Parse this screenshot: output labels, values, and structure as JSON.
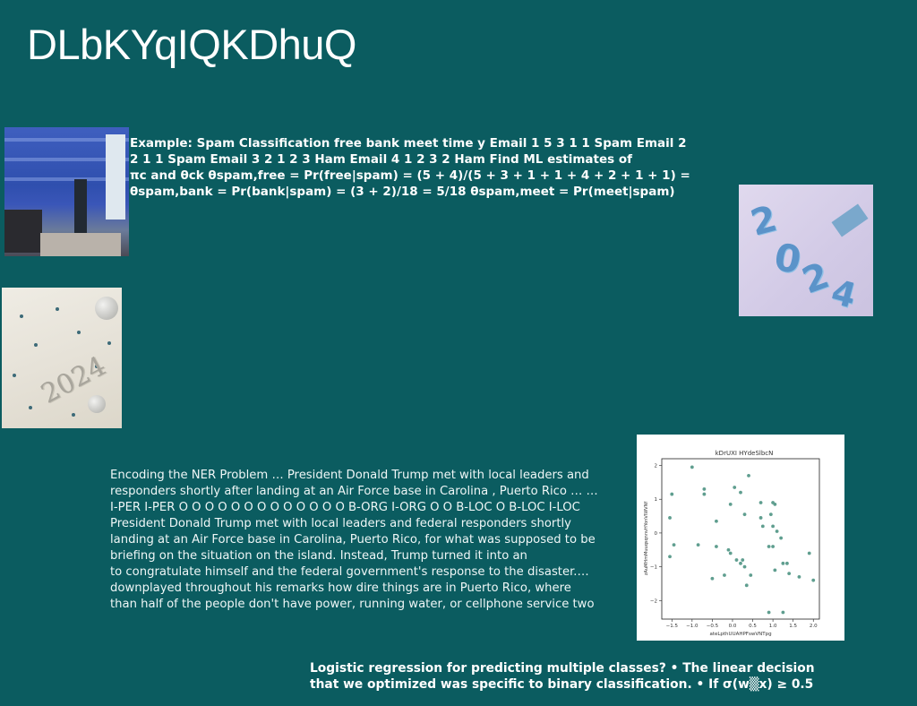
{
  "slide": {
    "title": "DLbKYqIQKDhuQ",
    "text_spam": [
      "Example: Spam Classification free bank meet time y Email 1 5 3 1 1 Spam Email 2",
      "2 1 1 Spam Email 3 2 1 2 3 Ham Email 4 1 2 3 2 Ham Find ML estimates of",
      "πc and θck θspam,free = Pr(free|spam) = (5 + 4)/(5 + 3 + 1 + 1 + 4 + 2 + 1 + 1) =",
      "θspam,bank = Pr(bank|spam) = (3 + 2)/18 = 5/18 θspam,meet = Pr(meet|spam)"
    ],
    "text_ner": [
      "Encoding the NER Problem … President Donald Trump met with local leaders and",
      "responders shortly after landing at an Air Force base in Carolina , Puerto Rico … …",
      "I-PER I-PER O O O O O O O O O O O O O B-ORG I-ORG O O B-LOC O B-LOC I-LOC",
      "President Donald Trump met with local leaders and federal responders shortly",
      "landing at an Air Force base in Carolina, Puerto Rico, for what was supposed to be",
      "briefing on the situation on the island. Instead, Trump turned it into an",
      "to congratulate himself and the federal government's response to the disaster.…",
      "downplayed throughout his remarks how dire things are in Puerto Rico, where",
      "than half of the people don't have power, running water, or cellphone service two"
    ],
    "text_logistic": [
      "Logistic regression for predicting multiple classes? • The linear decision",
      "that we optimized was specific to binary classification. • If σ(w▒x) ≥ 0.5"
    ]
  },
  "images": {
    "cabin_icon": "blue-cabin-interior-photo",
    "balloons_icon": "2024-balloons-photo",
    "silver_icon": "2024-silver-numbers-photo",
    "balloon_digits": [
      "2",
      "0",
      "2",
      "4"
    ],
    "silver_digits": "2024"
  },
  "chart_data": {
    "type": "scatter",
    "title": "kDrUXI HYdeSlbcN",
    "xlabel": "ateLpthUUAHPFswVNTpg",
    "ylabel": "zAuMHmMuuqsqnnvHYonVIWVNf",
    "xlim": [
      -1.75,
      2.15
    ],
    "ylim": [
      -2.55,
      2.2
    ],
    "xticks": [
      -1.5,
      -1.0,
      -0.5,
      0.0,
      0.5,
      1.0,
      1.5,
      2.0
    ],
    "xtick_labels": [
      "−1.5",
      "−1.0",
      "−0.5",
      "0.0",
      "0.5",
      "1.0",
      "1.5",
      "2.0"
    ],
    "yticks": [
      -2,
      -1,
      0,
      1,
      2
    ],
    "ytick_labels": [
      "−2",
      "−1",
      "0",
      "1",
      "2"
    ],
    "grid": false,
    "point_color": "#5f9e8f",
    "points": [
      [
        -1.0,
        1.95
      ],
      [
        -1.55,
        0.45
      ],
      [
        -1.5,
        1.15
      ],
      [
        -1.45,
        -0.35
      ],
      [
        -1.55,
        -0.7
      ],
      [
        -0.7,
        1.3
      ],
      [
        -0.7,
        1.15
      ],
      [
        -0.85,
        -0.35
      ],
      [
        -0.4,
        0.35
      ],
      [
        -0.4,
        -0.4
      ],
      [
        -0.5,
        -1.35
      ],
      [
        -0.2,
        -1.25
      ],
      [
        -0.1,
        -0.5
      ],
      [
        -0.05,
        -0.6
      ],
      [
        0.05,
        1.35
      ],
      [
        0.2,
        1.2
      ],
      [
        0.3,
        0.55
      ],
      [
        0.4,
        1.7
      ],
      [
        0.1,
        -0.8
      ],
      [
        0.2,
        -0.9
      ],
      [
        0.25,
        -0.8
      ],
      [
        0.3,
        -1.0
      ],
      [
        0.45,
        -1.25
      ],
      [
        0.35,
        -1.55
      ],
      [
        -0.05,
        0.85
      ],
      [
        0.7,
        0.9
      ],
      [
        0.75,
        0.2
      ],
      [
        0.7,
        0.45
      ],
      [
        0.9,
        -0.4
      ],
      [
        0.95,
        0.55
      ],
      [
        1.0,
        0.9
      ],
      [
        1.05,
        0.85
      ],
      [
        1.0,
        0.2
      ],
      [
        1.1,
        0.05
      ],
      [
        1.2,
        -0.15
      ],
      [
        1.0,
        -0.4
      ],
      [
        1.25,
        -0.9
      ],
      [
        1.35,
        -0.9
      ],
      [
        1.4,
        -1.2
      ],
      [
        1.65,
        -1.3
      ],
      [
        1.9,
        -0.6
      ],
      [
        2.0,
        -1.4
      ],
      [
        0.9,
        -2.35
      ],
      [
        1.25,
        -2.35
      ],
      [
        1.05,
        -1.1
      ]
    ]
  }
}
